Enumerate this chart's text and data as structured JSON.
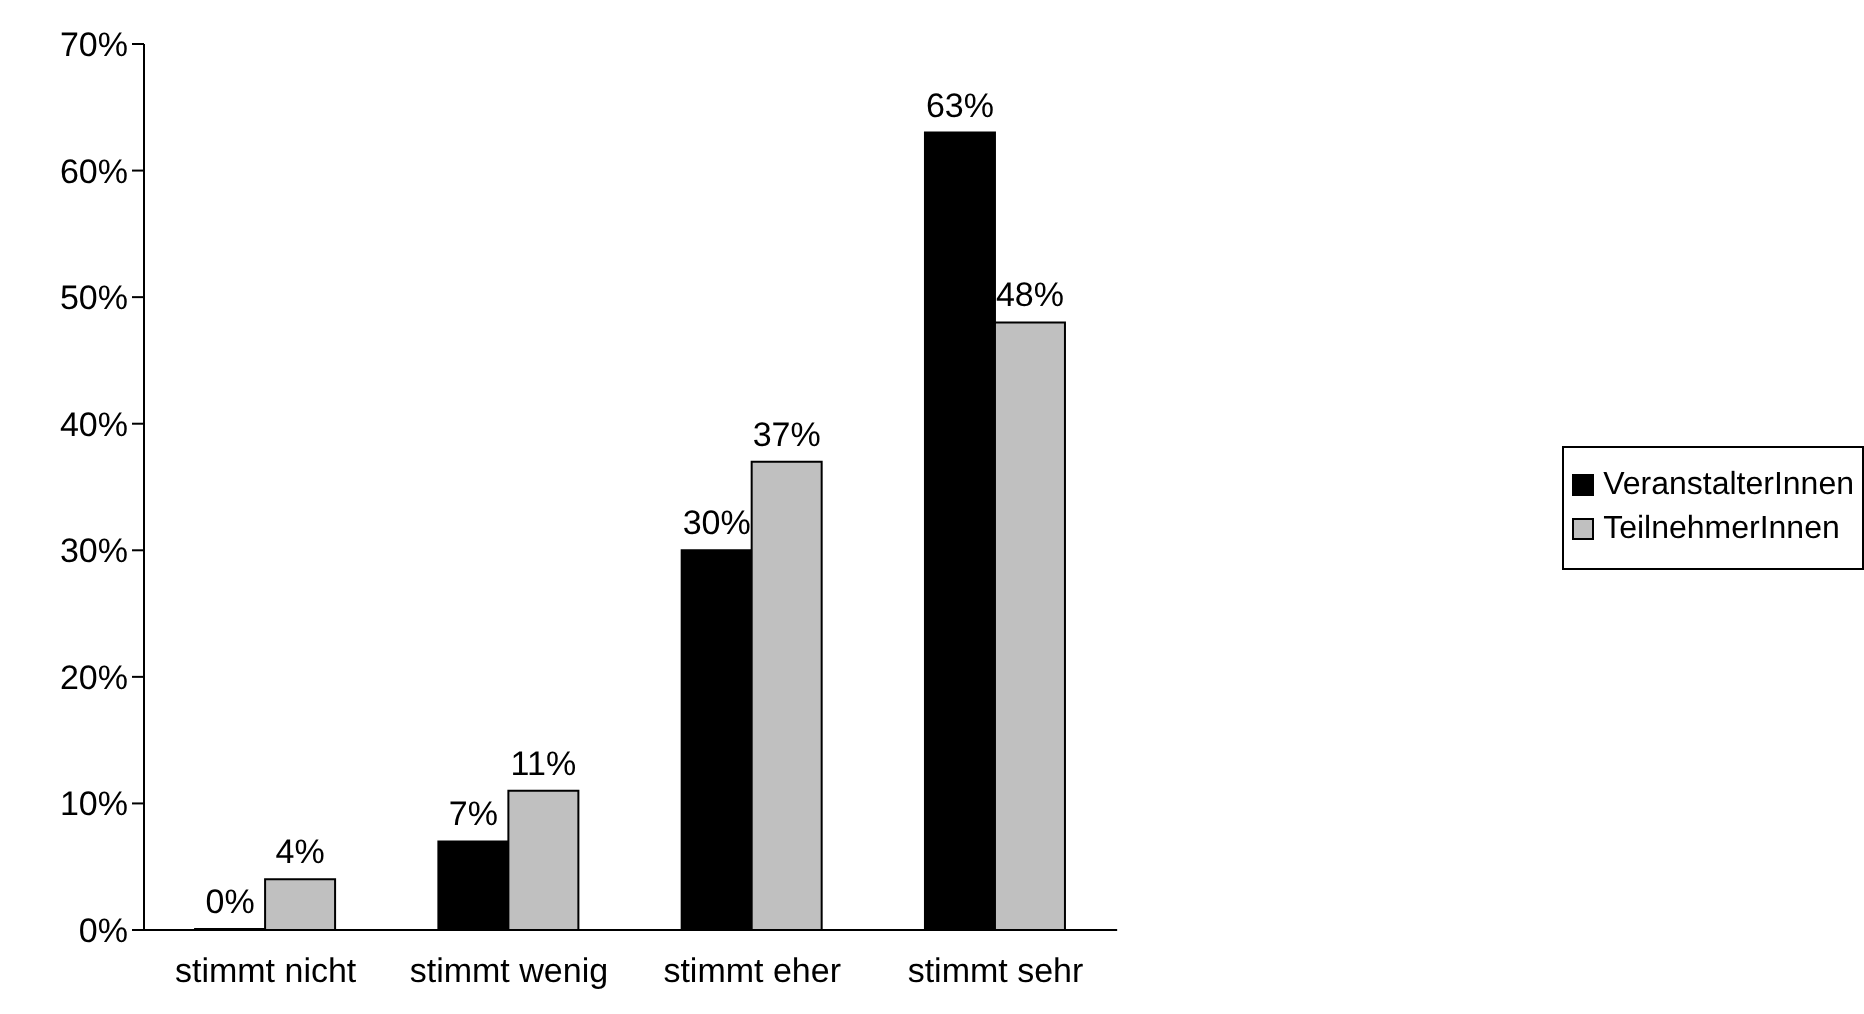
{
  "chart_data": {
    "type": "bar",
    "categories": [
      "stimmt nicht",
      "stimmt wenig",
      "stimmt eher",
      "stimmt sehr"
    ],
    "series": [
      {
        "name": "VeranstalterInnen",
        "color": "#000000",
        "values": [
          0,
          7,
          30,
          63
        ],
        "value_labels": [
          "0%",
          "7%",
          "30%",
          "63%"
        ]
      },
      {
        "name": "TeilnehmerInnen",
        "color": "#c0c0c0",
        "values": [
          4,
          11,
          37,
          48
        ],
        "value_labels": [
          "4%",
          "11%",
          "37%",
          "48%"
        ]
      }
    ],
    "ylim": [
      0,
      70
    ],
    "yticks": [
      {
        "value": 0,
        "label": "0%"
      },
      {
        "value": 10,
        "label": "10%"
      },
      {
        "value": 20,
        "label": "20%"
      },
      {
        "value": 30,
        "label": "30%"
      },
      {
        "value": 40,
        "label": "40%"
      },
      {
        "value": 50,
        "label": "50%"
      },
      {
        "value": 60,
        "label": "60%"
      },
      {
        "value": 70,
        "label": "70%"
      }
    ],
    "grid": false,
    "legend": "right"
  }
}
